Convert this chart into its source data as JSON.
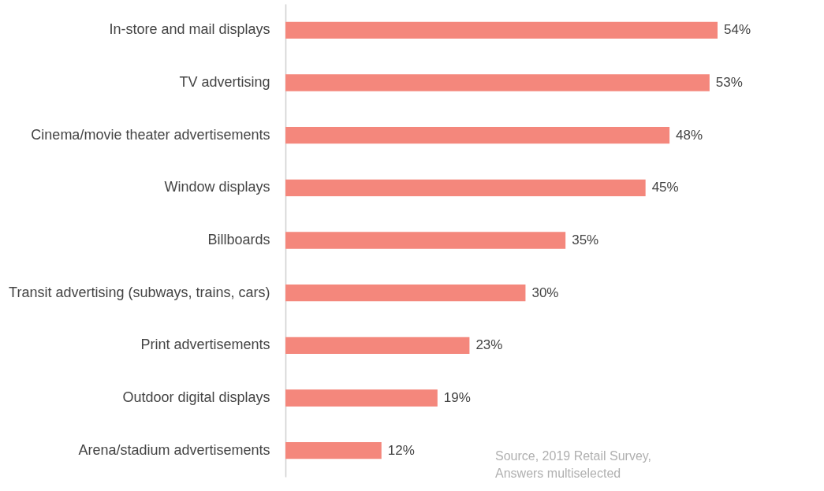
{
  "chart_data": {
    "type": "bar",
    "orientation": "horizontal",
    "categories": [
      "In-store and mail displays",
      "TV advertising",
      "Cinema/movie theater advertisements",
      "Window displays",
      "Billboards",
      "Transit advertising (subways, trains, cars)",
      "Print advertisements",
      "Outdoor digital displays",
      "Arena/stadium advertisements"
    ],
    "values": [
      54,
      53,
      48,
      45,
      35,
      30,
      23,
      19,
      12
    ],
    "value_labels": [
      "54%",
      "53%",
      "48%",
      "45%",
      "35%",
      "30%",
      "23%",
      "19%",
      "12%"
    ],
    "color": "#f4877c",
    "annotations": [
      "Source, 2019 Retail Survey,",
      "Answers multiselected"
    ]
  }
}
